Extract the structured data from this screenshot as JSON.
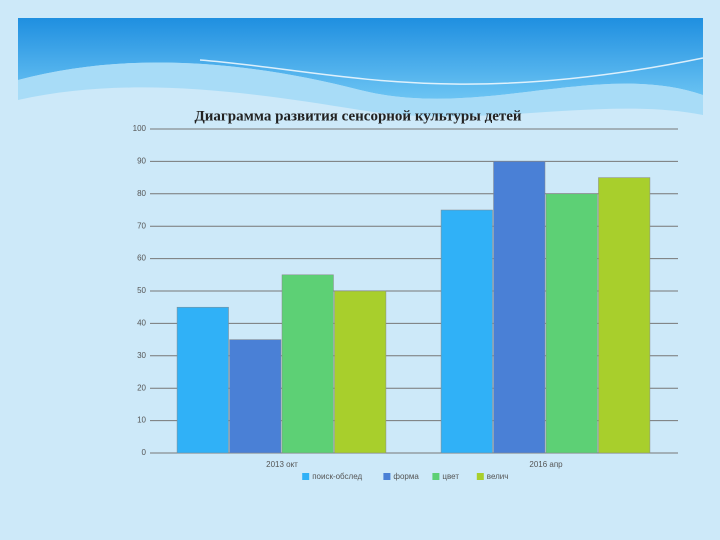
{
  "chart_data": {
    "type": "bar",
    "title": "Диаграмма развития сенсорной культуры детей",
    "categories": [
      "2013 окт",
      "2016 апр"
    ],
    "series": [
      {
        "name": "поиск-обслед",
        "color": "#30b1f7",
        "values": [
          45,
          75
        ]
      },
      {
        "name": "форма",
        "color": "#4a80d6",
        "values": [
          35,
          90
        ]
      },
      {
        "name": "цвет",
        "color": "#5dd075",
        "values": [
          55,
          80
        ]
      },
      {
        "name": "велич",
        "color": "#a8cf2c",
        "values": [
          50,
          85
        ]
      }
    ],
    "ylim": [
      0,
      100
    ],
    "yticks": [
      0,
      10,
      20,
      30,
      40,
      50,
      60,
      70,
      80,
      90,
      100
    ],
    "grid": true,
    "legend": "bottom"
  }
}
